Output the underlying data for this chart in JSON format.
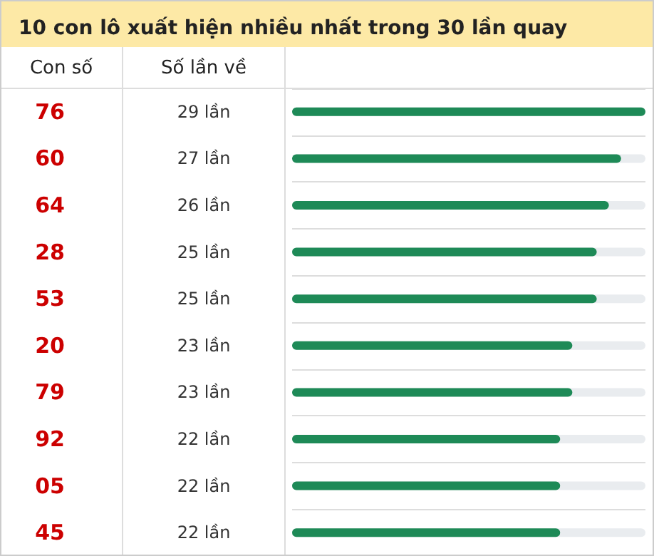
{
  "chart_data": {
    "type": "bar",
    "orientation": "horizontal",
    "title": "10 con lô xuất hiện nhiều nhất trong 30 lần quay",
    "annotations": [
      "Con số",
      "Số lần về"
    ],
    "categories": [
      "76",
      "60",
      "64",
      "28",
      "53",
      "20",
      "79",
      "92",
      "05",
      "45"
    ],
    "values": [
      29,
      27,
      26,
      25,
      25,
      23,
      23,
      22,
      22,
      22
    ],
    "value_labels": [
      "29 lần",
      "27 lần",
      "26 lần",
      "25 lần",
      "25 lần",
      "23 lần",
      "23 lần",
      "22 lần",
      "22 lần",
      "22 lần"
    ],
    "color": "#1e8a57",
    "xlim": [
      0,
      29
    ],
    "tick_labels": "y",
    "grid": "y"
  }
}
